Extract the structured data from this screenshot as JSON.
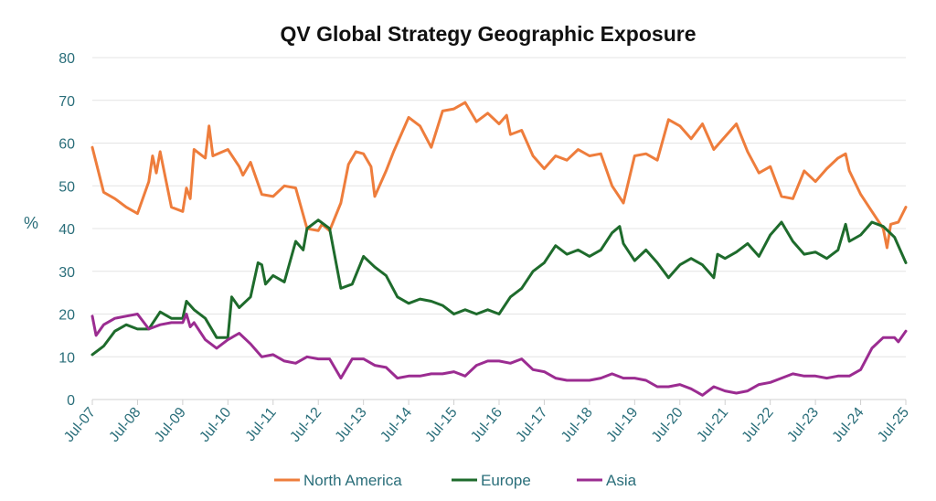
{
  "chart_data": {
    "type": "line",
    "title": "QV Global Strategy Geographic Exposure",
    "xlabel": "",
    "ylabel": "%",
    "ylim": [
      0,
      80
    ],
    "yticks": [
      0,
      10,
      20,
      30,
      40,
      50,
      60,
      70,
      80
    ],
    "xlim": [
      0,
      18
    ],
    "x_axis_kind": "time",
    "x_tick_labels": [
      "Jul-07",
      "Jul-08",
      "Jul-09",
      "Jul-10",
      "Jul-11",
      "Jul-12",
      "Jul-13",
      "Jul-14",
      "Jul-15",
      "Jul-16",
      "Jul-17",
      "Jul-18",
      "Jul-19",
      "Jul-20",
      "Jul-21",
      "Jul-22",
      "Jul-23",
      "Jul-24",
      "Jul-25"
    ],
    "grid": "horizontal",
    "legend_position": "bottom",
    "series": [
      {
        "name": "North America",
        "color": "#ee7d3c",
        "points": [
          [
            "Jul-07",
            59
          ],
          [
            "Oct-07",
            48.5
          ],
          [
            "Jan-08",
            47
          ],
          [
            "Apr-08",
            45
          ],
          [
            "Jul-08",
            43.5
          ],
          [
            "Oct-08",
            51
          ],
          [
            "Nov-08",
            57
          ],
          [
            "Dec-08",
            53
          ],
          [
            "Jan-09",
            58
          ],
          [
            "Apr-09",
            45
          ],
          [
            "Jul-09",
            44
          ],
          [
            "Aug-09",
            49.5
          ],
          [
            "Sep-09",
            47
          ],
          [
            "Oct-09",
            58.5
          ],
          [
            "Jan-10",
            56.5
          ],
          [
            "Feb-10",
            64
          ],
          [
            "Mar-10",
            57
          ],
          [
            "Jul-10",
            58.5
          ],
          [
            "Oct-10",
            54.5
          ],
          [
            "Nov-10",
            52.5
          ],
          [
            "Jan-11",
            55.5
          ],
          [
            "Apr-11",
            48
          ],
          [
            "Jul-11",
            47.5
          ],
          [
            "Oct-11",
            50
          ],
          [
            "Jan-12",
            49.5
          ],
          [
            "Apr-12",
            40
          ],
          [
            "Jul-12",
            39.5
          ],
          [
            "Aug-12",
            41
          ],
          [
            "Oct-12",
            39.5
          ],
          [
            "Jan-13",
            46
          ],
          [
            "Mar-13",
            55
          ],
          [
            "May-13",
            58
          ],
          [
            "Jul-13",
            57.5
          ],
          [
            "Sep-13",
            54.5
          ],
          [
            "Oct-13",
            47.5
          ],
          [
            "Jan-14",
            53.5
          ],
          [
            "Mar-14",
            58
          ],
          [
            "Jul-14",
            66
          ],
          [
            "Oct-14",
            64
          ],
          [
            "Jan-15",
            59
          ],
          [
            "Apr-15",
            67.5
          ],
          [
            "Jul-15",
            68
          ],
          [
            "Oct-15",
            69.5
          ],
          [
            "Jan-16",
            65
          ],
          [
            "Apr-16",
            67
          ],
          [
            "Jul-16",
            64.5
          ],
          [
            "Sep-16",
            66.5
          ],
          [
            "Oct-16",
            62
          ],
          [
            "Jan-17",
            63
          ],
          [
            "Apr-17",
            57
          ],
          [
            "Jul-17",
            54
          ],
          [
            "Oct-17",
            57
          ],
          [
            "Jan-18",
            56
          ],
          [
            "Apr-18",
            58.5
          ],
          [
            "Jul-18",
            57
          ],
          [
            "Oct-18",
            57.5
          ],
          [
            "Jan-19",
            50
          ],
          [
            "Apr-19",
            46
          ],
          [
            "Jul-19",
            57
          ],
          [
            "Oct-19",
            57.5
          ],
          [
            "Jan-20",
            56
          ],
          [
            "Apr-20",
            65.5
          ],
          [
            "Jul-20",
            64
          ],
          [
            "Oct-20",
            61
          ],
          [
            "Jan-21",
            64.5
          ],
          [
            "Apr-21",
            58.5
          ],
          [
            "Jul-21",
            61.5
          ],
          [
            "Oct-21",
            64.5
          ],
          [
            "Jan-22",
            58
          ],
          [
            "Apr-22",
            53
          ],
          [
            "Jul-22",
            54.5
          ],
          [
            "Oct-22",
            47.5
          ],
          [
            "Jan-23",
            47
          ],
          [
            "Apr-23",
            53.5
          ],
          [
            "Jul-23",
            51
          ],
          [
            "Oct-23",
            54
          ],
          [
            "Jan-24",
            56.5
          ],
          [
            "Mar-24",
            57.5
          ],
          [
            "Apr-24",
            53.5
          ],
          [
            "Jul-24",
            48
          ],
          [
            "Oct-24",
            44
          ],
          [
            "Jan-25",
            40
          ],
          [
            "Feb-25",
            35.5
          ],
          [
            "Mar-25",
            41
          ],
          [
            "May-25",
            41.5
          ],
          [
            "Jul-25",
            45
          ]
        ]
      },
      {
        "name": "Europe",
        "color": "#1e6b2c",
        "points": [
          [
            "Jul-07",
            10.5
          ],
          [
            "Oct-07",
            12.5
          ],
          [
            "Jan-08",
            16
          ],
          [
            "Apr-08",
            17.5
          ],
          [
            "Jul-08",
            16.5
          ],
          [
            "Oct-08",
            16.5
          ],
          [
            "Jan-09",
            20.5
          ],
          [
            "Apr-09",
            19
          ],
          [
            "Jul-09",
            19
          ],
          [
            "Aug-09",
            23
          ],
          [
            "Oct-09",
            21
          ],
          [
            "Jan-10",
            19
          ],
          [
            "Apr-10",
            14.5
          ],
          [
            "Jul-10",
            14.5
          ],
          [
            "Aug-10",
            24
          ],
          [
            "Oct-10",
            21.5
          ],
          [
            "Jan-11",
            24
          ],
          [
            "Mar-11",
            32
          ],
          [
            "Apr-11",
            31.5
          ],
          [
            "May-11",
            27
          ],
          [
            "Jul-11",
            29
          ],
          [
            "Oct-11",
            27.5
          ],
          [
            "Jan-12",
            37
          ],
          [
            "Mar-12",
            35
          ],
          [
            "Apr-12",
            40
          ],
          [
            "Jul-12",
            42
          ],
          [
            "Oct-12",
            40
          ],
          [
            "Jan-13",
            26
          ],
          [
            "Apr-13",
            27
          ],
          [
            "Jul-13",
            33.5
          ],
          [
            "Oct-13",
            31
          ],
          [
            "Jan-14",
            29
          ],
          [
            "Apr-14",
            24
          ],
          [
            "Jul-14",
            22.5
          ],
          [
            "Oct-14",
            23.5
          ],
          [
            "Jan-15",
            23
          ],
          [
            "Apr-15",
            22
          ],
          [
            "Jul-15",
            20
          ],
          [
            "Oct-15",
            21
          ],
          [
            "Jan-16",
            20
          ],
          [
            "Apr-16",
            21
          ],
          [
            "Jul-16",
            20
          ],
          [
            "Oct-16",
            24
          ],
          [
            "Jan-17",
            26
          ],
          [
            "Apr-17",
            30
          ],
          [
            "Jul-17",
            32
          ],
          [
            "Oct-17",
            36
          ],
          [
            "Jan-18",
            34
          ],
          [
            "Apr-18",
            35
          ],
          [
            "Jul-18",
            33.5
          ],
          [
            "Oct-18",
            35
          ],
          [
            "Jan-19",
            39
          ],
          [
            "Mar-19",
            40.5
          ],
          [
            "Apr-19",
            36.5
          ],
          [
            "Jul-19",
            32.5
          ],
          [
            "Oct-19",
            35
          ],
          [
            "Jan-20",
            32
          ],
          [
            "Apr-20",
            28.5
          ],
          [
            "Jul-20",
            31.5
          ],
          [
            "Oct-20",
            33
          ],
          [
            "Jan-21",
            31.5
          ],
          [
            "Apr-21",
            28.5
          ],
          [
            "May-21",
            34
          ],
          [
            "Jul-21",
            33
          ],
          [
            "Oct-21",
            34.5
          ],
          [
            "Jan-22",
            36.5
          ],
          [
            "Apr-22",
            33.5
          ],
          [
            "Jul-22",
            38.5
          ],
          [
            "Oct-22",
            41.5
          ],
          [
            "Jan-23",
            37
          ],
          [
            "Apr-23",
            34
          ],
          [
            "Jul-23",
            34.5
          ],
          [
            "Oct-23",
            33
          ],
          [
            "Jan-24",
            35
          ],
          [
            "Mar-24",
            41
          ],
          [
            "Apr-24",
            37
          ],
          [
            "Jul-24",
            38.5
          ],
          [
            "Oct-24",
            41.5
          ],
          [
            "Jan-25",
            40.5
          ],
          [
            "Apr-25",
            38
          ],
          [
            "Jul-25",
            32
          ]
        ]
      },
      {
        "name": "Asia",
        "color": "#9b2c91",
        "points": [
          [
            "Jul-07",
            19.5
          ],
          [
            "Aug-07",
            15
          ],
          [
            "Oct-07",
            17.5
          ],
          [
            "Jan-08",
            19
          ],
          [
            "Apr-08",
            19.5
          ],
          [
            "Jul-08",
            20
          ],
          [
            "Oct-08",
            16.5
          ],
          [
            "Jan-09",
            17.5
          ],
          [
            "Apr-09",
            18
          ],
          [
            "Jul-09",
            18
          ],
          [
            "Aug-09",
            20
          ],
          [
            "Sep-09",
            17
          ],
          [
            "Oct-09",
            18
          ],
          [
            "Jan-10",
            14
          ],
          [
            "Apr-10",
            12
          ],
          [
            "Jul-10",
            14
          ],
          [
            "Oct-10",
            15.5
          ],
          [
            "Jan-11",
            13
          ],
          [
            "Apr-11",
            10
          ],
          [
            "Jul-11",
            10.5
          ],
          [
            "Oct-11",
            9
          ],
          [
            "Jan-12",
            8.5
          ],
          [
            "Apr-12",
            10
          ],
          [
            "Jul-12",
            9.5
          ],
          [
            "Oct-12",
            9.5
          ],
          [
            "Jan-13",
            5
          ],
          [
            "Apr-13",
            9.5
          ],
          [
            "Jul-13",
            9.5
          ],
          [
            "Oct-13",
            8
          ],
          [
            "Jan-14",
            7.5
          ],
          [
            "Apr-14",
            5
          ],
          [
            "Jul-14",
            5.5
          ],
          [
            "Oct-14",
            5.5
          ],
          [
            "Jan-15",
            6
          ],
          [
            "Apr-15",
            6
          ],
          [
            "Jul-15",
            6.5
          ],
          [
            "Oct-15",
            5.5
          ],
          [
            "Jan-16",
            8
          ],
          [
            "Apr-16",
            9
          ],
          [
            "Jul-16",
            9
          ],
          [
            "Oct-16",
            8.5
          ],
          [
            "Jan-17",
            9.5
          ],
          [
            "Apr-17",
            7
          ],
          [
            "Jul-17",
            6.5
          ],
          [
            "Oct-17",
            5
          ],
          [
            "Jan-18",
            4.5
          ],
          [
            "Apr-18",
            4.5
          ],
          [
            "Jul-18",
            4.5
          ],
          [
            "Oct-18",
            5
          ],
          [
            "Jan-19",
            6
          ],
          [
            "Apr-19",
            5
          ],
          [
            "Jul-19",
            5
          ],
          [
            "Oct-19",
            4.5
          ],
          [
            "Jan-20",
            3
          ],
          [
            "Apr-20",
            3
          ],
          [
            "Jul-20",
            3.5
          ],
          [
            "Oct-20",
            2.5
          ],
          [
            "Jan-21",
            1
          ],
          [
            "Apr-21",
            3
          ],
          [
            "Jul-21",
            2
          ],
          [
            "Oct-21",
            1.5
          ],
          [
            "Jan-22",
            2
          ],
          [
            "Apr-22",
            3.5
          ],
          [
            "Jul-22",
            4
          ],
          [
            "Oct-22",
            5
          ],
          [
            "Jan-23",
            6
          ],
          [
            "Apr-23",
            5.5
          ],
          [
            "Jul-23",
            5.5
          ],
          [
            "Oct-23",
            5
          ],
          [
            "Jan-24",
            5.5
          ],
          [
            "Apr-24",
            5.5
          ],
          [
            "Jul-24",
            7
          ],
          [
            "Oct-24",
            12
          ],
          [
            "Jan-25",
            14.5
          ],
          [
            "Apr-25",
            14.5
          ],
          [
            "May-25",
            13.5
          ],
          [
            "Jul-25",
            16
          ]
        ]
      }
    ]
  }
}
